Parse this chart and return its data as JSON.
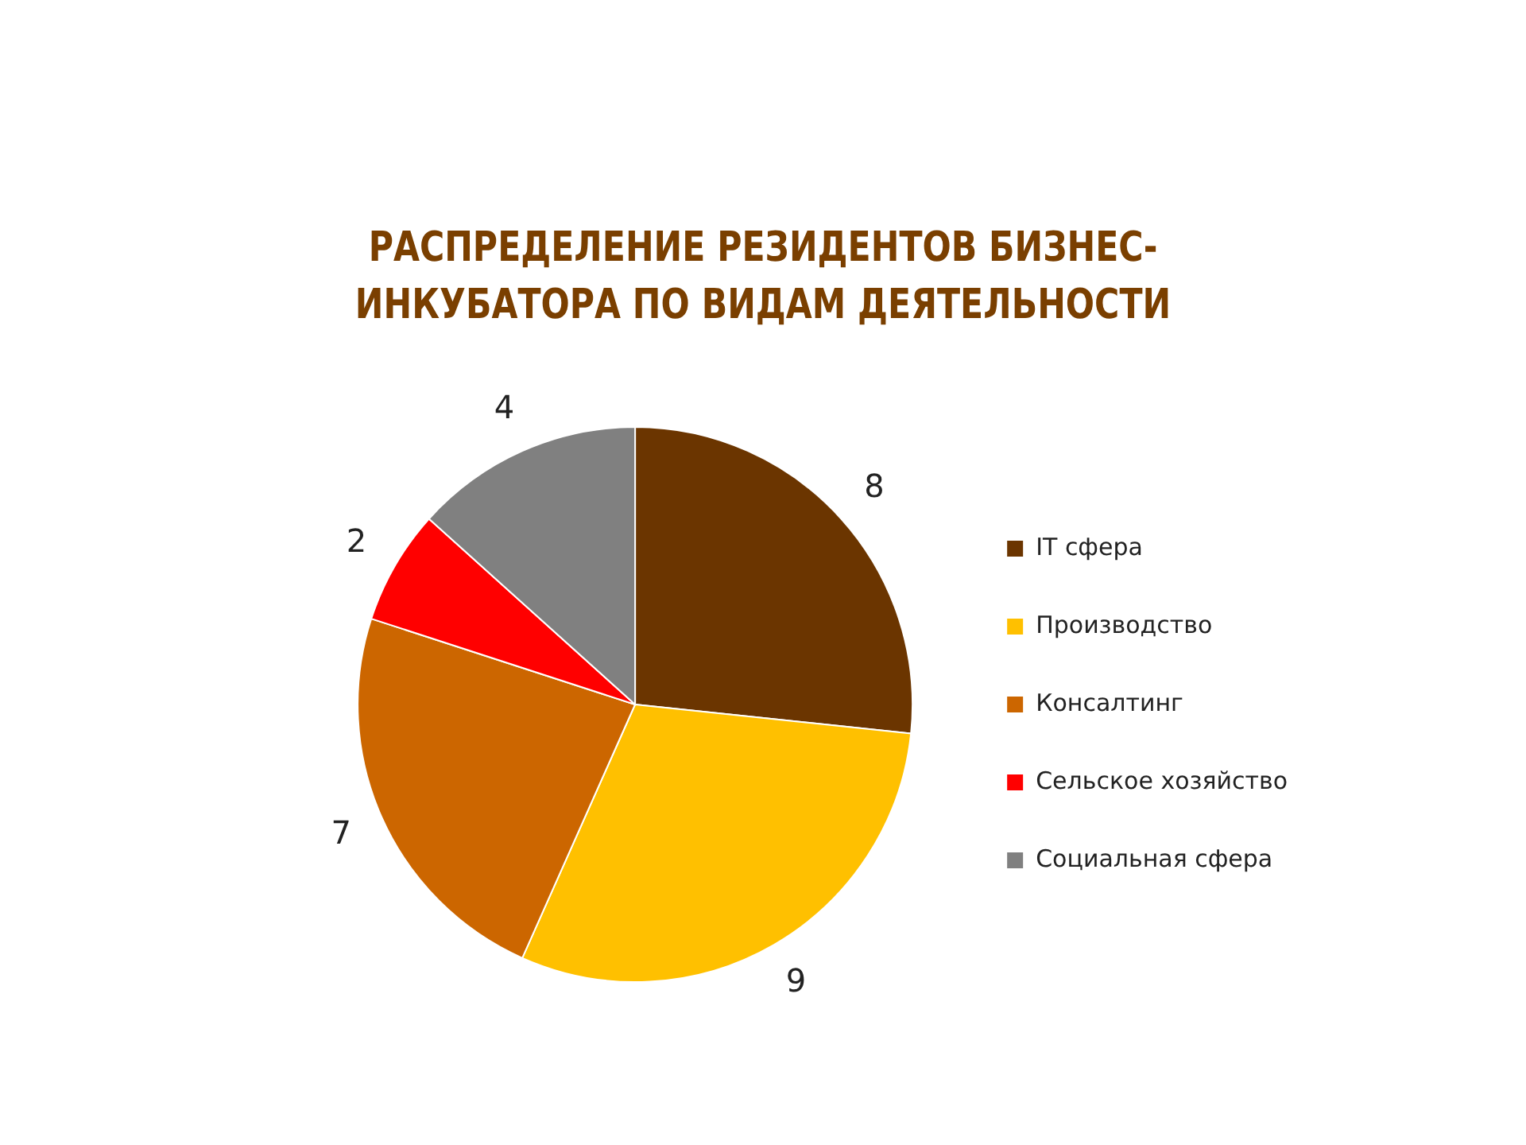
{
  "chart_data": {
    "type": "pie",
    "title": "РАСПРЕДЕЛЕНИЕ РЕЗИДЕНТОВ БИЗНЕС-ИНКУБАТОРА ПО ВИДАМ ДЕЯТЕЛЬНОСТИ",
    "categories": [
      "IT сфера",
      "Производство",
      "Консалтинг",
      "Сельское хозяйство",
      "Социальная сфера"
    ],
    "values": [
      8,
      9,
      7,
      2,
      4
    ],
    "colors": [
      "#6b3500",
      "#ffc000",
      "#cc6600",
      "#ff0000",
      "#808080"
    ],
    "data_labels": true,
    "legend": "right"
  }
}
